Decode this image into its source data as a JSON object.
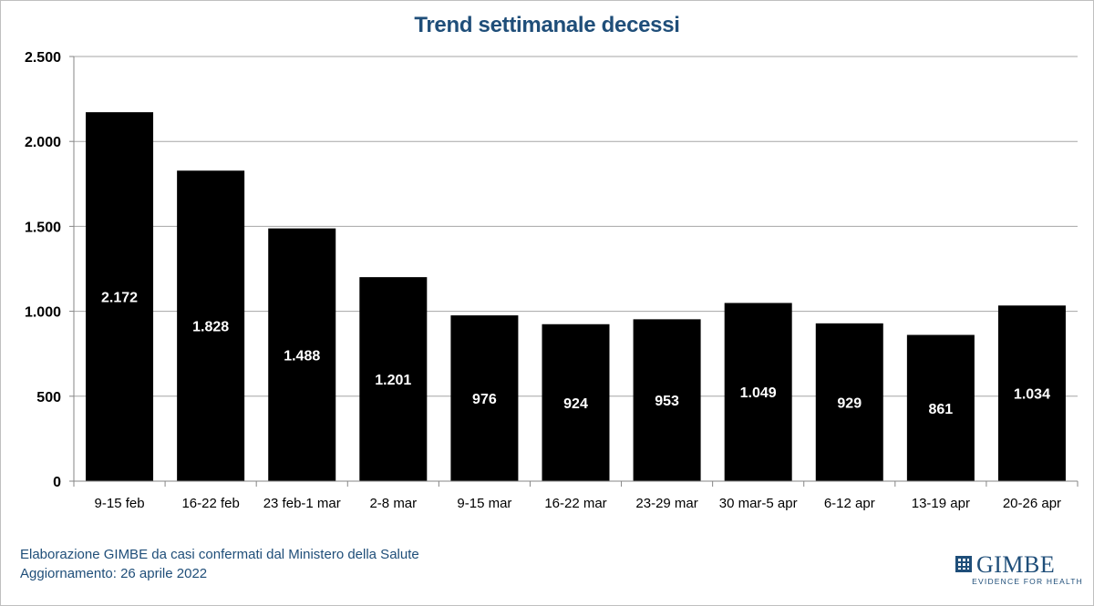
{
  "chart_data": {
    "type": "bar",
    "title": "Trend settimanale decessi",
    "categories": [
      "9-15 feb",
      "16-22 feb",
      "23 feb-1 mar",
      "2-8 mar",
      "9-15 mar",
      "16-22 mar",
      "23-29 mar",
      "30 mar-5 apr",
      "6-12 apr",
      "13-19 apr",
      "20-26 apr"
    ],
    "values": [
      2172,
      1828,
      1488,
      1201,
      976,
      924,
      953,
      1049,
      929,
      861,
      1034
    ],
    "value_labels": [
      "2.172",
      "1.828",
      "1.488",
      "1.201",
      "976",
      "924",
      "953",
      "1.049",
      "929",
      "861",
      "1.034"
    ],
    "ylim": [
      0,
      2500
    ],
    "yticks": [
      0,
      500,
      1000,
      1500,
      2000,
      2500
    ],
    "ytick_labels": [
      "0",
      "500",
      "1.000",
      "1.500",
      "2.000",
      "2.500"
    ],
    "grid": true,
    "bar_color": "#000000",
    "label_color": "#ffffff"
  },
  "footer": {
    "line1": "Elaborazione GIMBE da casi confermati dal Ministero della Salute",
    "line2": "Aggiornamento: 26 aprile 2022"
  },
  "logo": {
    "name": "GIMBE",
    "tagline": "EVIDENCE FOR HEALTH",
    "color": "#1f4e79"
  }
}
